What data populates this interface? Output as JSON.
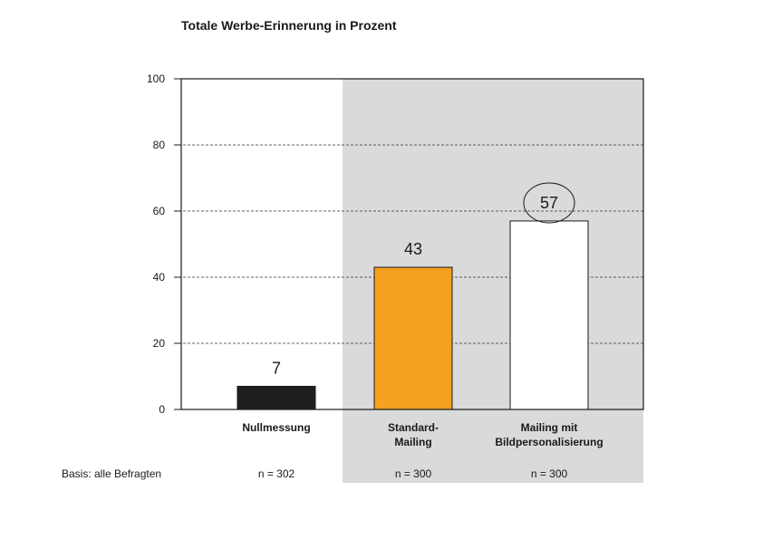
{
  "chart_data": {
    "type": "bar",
    "title": "Totale Werbe-Erinnerung in Prozent",
    "categories": [
      [
        "Nullmessung"
      ],
      [
        "Standard-",
        "Mailing"
      ],
      [
        "Mailing mit",
        "Bildpersonalisierung"
      ]
    ],
    "values": [
      7,
      43,
      57
    ],
    "value_labels": [
      "7",
      "43",
      "57"
    ],
    "highlighted_value_index": 2,
    "bar_colors": [
      "#1e1f21",
      "#f4a020",
      "#ffffff"
    ],
    "shaded_categories": [
      1,
      2
    ],
    "shade_color": "#d9dadb",
    "ylim": [
      0,
      100
    ],
    "yticks": [
      0,
      20,
      40,
      60,
      80,
      100
    ],
    "grid": "dashed",
    "base_label": "Basis: alle Befragten",
    "base_values": [
      "n = 302",
      "n = 300",
      "n = 300"
    ]
  }
}
